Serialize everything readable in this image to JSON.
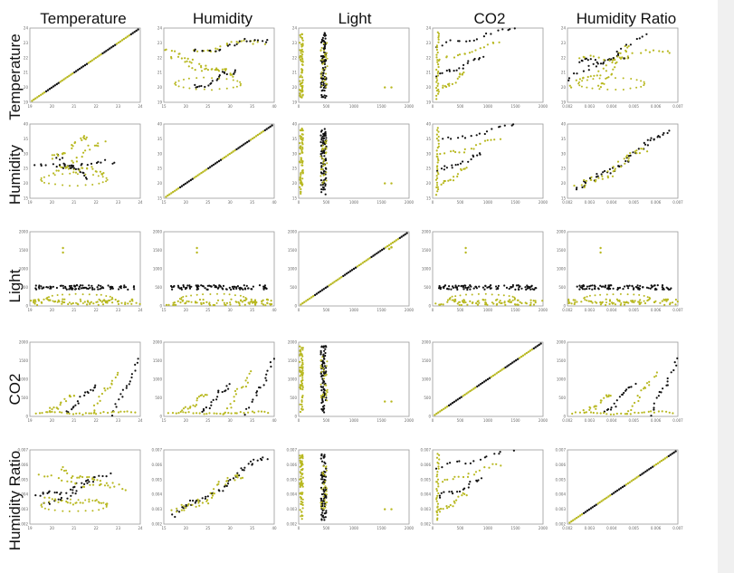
{
  "chart_data": {
    "type": "scatter",
    "title": "",
    "variables": [
      "Temperature",
      "Humidity",
      "Light",
      "CO2",
      "Humidity Ratio"
    ],
    "column_titles": [
      "Temperature",
      "Humidity",
      "Light",
      "CO2",
      "Humidity Ratio"
    ],
    "row_titles": [
      "Temperature",
      "Humidity",
      "Light",
      "CO2",
      "Humidity Ratio"
    ],
    "ranges": {
      "Temperature": [
        19,
        24
      ],
      "Humidity": [
        15,
        40
      ],
      "Light": [
        0,
        2000
      ],
      "CO2": [
        0,
        2000
      ],
      "Humidity Ratio": [
        0.002,
        0.007
      ]
    },
    "tick_labels": {
      "Temperature": [
        "19",
        "20",
        "21",
        "22",
        "23",
        "24"
      ],
      "Humidity": [
        "15",
        "20",
        "25",
        "30",
        "35",
        "40"
      ],
      "Light": [
        "0",
        "500",
        "1000",
        "1500",
        "2000"
      ],
      "CO2": [
        "0",
        "500",
        "1000",
        "1500",
        "2000"
      ],
      "Humidity Ratio": [
        "0.002",
        "0.003",
        "0.004",
        "0.005",
        "0.006",
        "0.007"
      ]
    },
    "series": [
      {
        "name": "",
        "color": "#b8b820"
      },
      {
        "name": "",
        "color": "#111111"
      }
    ],
    "grid": false,
    "legend": "none"
  }
}
